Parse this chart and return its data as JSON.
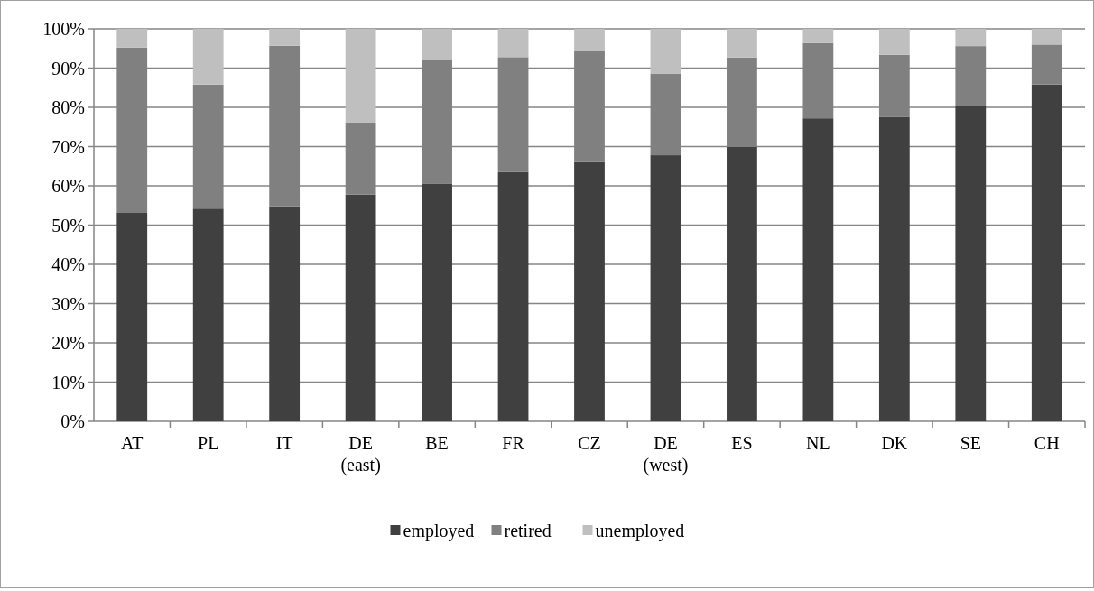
{
  "chart_data": {
    "type": "bar",
    "stacked": true,
    "categories": [
      "AT",
      "PL",
      "IT",
      "DE\n(east)",
      "BE",
      "FR",
      "CZ",
      "DE\n(west)",
      "ES",
      "NL",
      "DK",
      "SE",
      "CH"
    ],
    "series": [
      {
        "name": "employed",
        "color": "#404040",
        "values": [
          53.1,
          54.2,
          54.8,
          57.8,
          60.6,
          63.5,
          66.3,
          67.8,
          69.9,
          77.2,
          77.5,
          80.4,
          85.8
        ]
      },
      {
        "name": "retired",
        "color": "#808080",
        "values": [
          42.1,
          31.6,
          40.9,
          18.3,
          31.7,
          29.3,
          28.1,
          20.7,
          22.8,
          19.2,
          15.9,
          15.2,
          10.2
        ]
      },
      {
        "name": "unemployed",
        "color": "#bfbfbf",
        "values": [
          4.8,
          14.2,
          4.3,
          23.9,
          7.7,
          7.2,
          5.6,
          11.5,
          7.3,
          3.6,
          6.6,
          4.4,
          4.0
        ]
      }
    ],
    "ylim": [
      0,
      100
    ],
    "yticks": [
      {
        "value": 0,
        "label": "0%"
      },
      {
        "value": 10,
        "label": "10%"
      },
      {
        "value": 20,
        "label": "20%"
      },
      {
        "value": 30,
        "label": "30%"
      },
      {
        "value": 40,
        "label": "40%"
      },
      {
        "value": 50,
        "label": "50%"
      },
      {
        "value": 60,
        "label": "60%"
      },
      {
        "value": 70,
        "label": "70%"
      },
      {
        "value": 80,
        "label": "80%"
      },
      {
        "value": 90,
        "label": "90%"
      },
      {
        "value": 100,
        "label": "100%"
      }
    ],
    "grid": "y",
    "legend": "bottom"
  }
}
